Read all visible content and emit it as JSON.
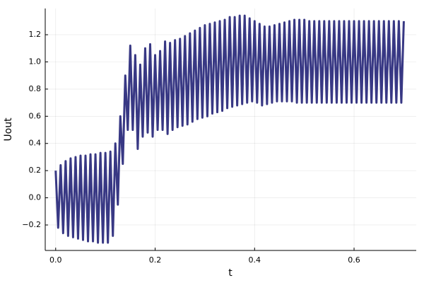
{
  "chart_data": {
    "type": "line",
    "xlabel": "t",
    "ylabel": "Uout",
    "xlim": [
      -0.021,
      0.725
    ],
    "ylim": [
      -0.3875,
      1.393
    ],
    "xticks": [
      {
        "value": 0,
        "label": "0.0"
      },
      0.2,
      0.4,
      0.6
    ],
    "yticks": [
      {
        "value": -0.2,
        "label": "−0.2"
      },
      {
        "value": 0,
        "label": "0.0"
      },
      0.2,
      0.4,
      0.6,
      0.8,
      {
        "value": 1,
        "label": "1.0"
      },
      1.2
    ],
    "grid": true,
    "x": [
      0,
      0.005,
      0.01,
      0.015,
      0.02,
      0.025,
      0.03,
      0.035,
      0.04,
      0.045,
      0.05,
      0.055,
      0.06,
      0.065,
      0.07,
      0.075,
      0.08,
      0.085,
      0.09,
      0.095,
      0.1,
      0.105,
      0.11,
      0.115,
      0.12,
      0.125,
      0.13,
      0.135,
      0.14,
      0.145,
      0.15,
      0.155,
      0.16,
      0.165,
      0.17,
      0.175,
      0.18,
      0.185,
      0.19,
      0.195,
      0.2,
      0.205,
      0.21,
      0.215,
      0.22,
      0.225,
      0.23,
      0.235,
      0.24,
      0.245,
      0.25,
      0.255,
      0.26,
      0.265,
      0.27,
      0.275,
      0.28,
      0.285,
      0.29,
      0.295,
      0.3,
      0.305,
      0.31,
      0.315,
      0.32,
      0.325,
      0.33,
      0.335,
      0.34,
      0.345,
      0.35,
      0.355,
      0.36,
      0.365,
      0.37,
      0.375,
      0.38,
      0.385,
      0.39,
      0.395,
      0.4,
      0.405,
      0.41,
      0.415,
      0.42,
      0.425,
      0.43,
      0.435,
      0.44,
      0.445,
      0.45,
      0.455,
      0.46,
      0.465,
      0.47,
      0.475,
      0.48,
      0.485,
      0.49,
      0.495,
      0.5,
      0.505,
      0.51,
      0.515,
      0.52,
      0.525,
      0.53,
      0.535,
      0.54,
      0.545,
      0.55,
      0.555,
      0.56,
      0.565,
      0.57,
      0.575,
      0.58,
      0.585,
      0.59,
      0.595,
      0.6,
      0.605,
      0.61,
      0.615,
      0.62,
      0.625,
      0.63,
      0.635,
      0.64,
      0.645,
      0.65,
      0.655,
      0.66,
      0.665,
      0.67,
      0.675,
      0.68,
      0.685,
      0.69,
      0.695,
      0.7
    ],
    "series": [
      {
        "color": "#383884",
        "values": [
          0.2,
          -0.22,
          0.24,
          -0.26,
          0.27,
          -0.28,
          0.29,
          -0.29,
          0.3,
          -0.3,
          0.31,
          -0.31,
          0.31,
          -0.32,
          0.32,
          -0.32,
          0.32,
          -0.33,
          0.33,
          -0.33,
          0.33,
          -0.33,
          0.34,
          -0.28,
          0.4,
          -0.05,
          0.6,
          0.25,
          0.9,
          0.5,
          1.12,
          0.5,
          1.05,
          0.36,
          0.98,
          0.45,
          1.1,
          0.48,
          1.13,
          0.45,
          1.05,
          0.5,
          1.08,
          0.5,
          1.15,
          0.47,
          1.14,
          0.5,
          1.16,
          0.52,
          1.17,
          0.53,
          1.19,
          0.54,
          1.21,
          0.56,
          1.23,
          0.58,
          1.25,
          0.59,
          1.27,
          0.6,
          1.28,
          0.62,
          1.29,
          0.63,
          1.3,
          0.64,
          1.31,
          0.66,
          1.33,
          0.67,
          1.33,
          0.68,
          1.34,
          0.69,
          1.34,
          0.7,
          1.32,
          0.71,
          1.3,
          0.7,
          1.28,
          0.68,
          1.26,
          0.69,
          1.26,
          0.7,
          1.27,
          0.71,
          1.28,
          0.71,
          1.29,
          0.71,
          1.3,
          0.71,
          1.31,
          0.7,
          1.31,
          0.7,
          1.31,
          0.7,
          1.3,
          0.7,
          1.3,
          0.7,
          1.3,
          0.7,
          1.3,
          0.7,
          1.3,
          0.7,
          1.3,
          0.7,
          1.3,
          0.7,
          1.3,
          0.7,
          1.3,
          0.7,
          1.3,
          0.7,
          1.3,
          0.7,
          1.3,
          0.7,
          1.3,
          0.7,
          1.3,
          0.7,
          1.3,
          0.7,
          1.3,
          0.7,
          1.3,
          0.7,
          1.3,
          0.7,
          1.3,
          0.7,
          1.3
        ]
      }
    ]
  }
}
